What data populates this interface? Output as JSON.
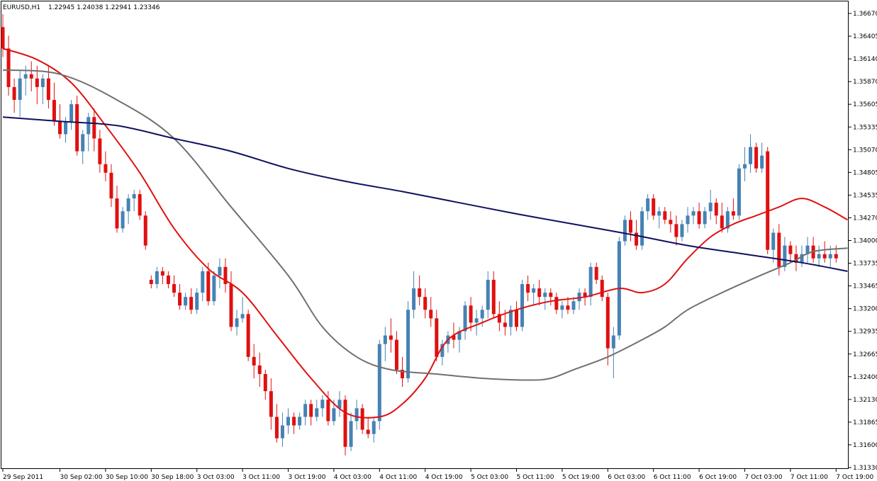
{
  "header": {
    "symbol": "EURUSD,H1",
    "quote": "1.22945 1.24038 1.22941 1.23346"
  },
  "colors": {
    "bull": "#4682b4",
    "bear": "#e01010",
    "ma_fast": "#e01010",
    "ma_mid": "#707070",
    "ma_slow": "#101060",
    "frame": "#000000"
  },
  "chart_data": {
    "type": "candlestick",
    "ylim": [
      1.3135,
      1.368
    ],
    "y_ticks": [
      "1.36670",
      "1.36405",
      "1.36140",
      "1.35870",
      "1.35605",
      "1.35335",
      "1.35070",
      "1.34805",
      "1.34535",
      "1.34270",
      "1.34000",
      "1.33735",
      "1.33465",
      "1.33200",
      "1.32935",
      "1.32665",
      "1.32400",
      "1.32130",
      "1.31865",
      "1.31600",
      "1.31330"
    ],
    "x_ticks": [
      {
        "label": "29 Sep 2011",
        "index": 0
      },
      {
        "label": "30 Sep 02:00",
        "index": 10
      },
      {
        "label": "30 Sep 10:00",
        "index": 18
      },
      {
        "label": "30 Sep 18:00",
        "index": 26
      },
      {
        "label": "3 Oct 03:00",
        "index": 34
      },
      {
        "label": "3 Oct 11:00",
        "index": 42
      },
      {
        "label": "3 Oct 19:00",
        "index": 50
      },
      {
        "label": "4 Oct 03:00",
        "index": 58
      },
      {
        "label": "4 Oct 11:00",
        "index": 66
      },
      {
        "label": "4 Oct 19:00",
        "index": 74
      },
      {
        "label": "5 Oct 03:00",
        "index": 82
      },
      {
        "label": "5 Oct 11:00",
        "index": 90
      },
      {
        "label": "5 Oct 19:00",
        "index": 98
      },
      {
        "label": "6 Oct 03:00",
        "index": 106
      },
      {
        "label": "6 Oct 11:00",
        "index": 114
      },
      {
        "label": "6 Oct 19:00",
        "index": 122
      },
      {
        "label": "7 Oct 03:00",
        "index": 130
      },
      {
        "label": "7 Oct 11:00",
        "index": 138
      },
      {
        "label": "7 Oct 19:00",
        "index": 146
      }
    ],
    "candles": [
      [
        1.365,
        1.3665,
        1.3615,
        1.3625
      ],
      [
        1.3625,
        1.364,
        1.357,
        1.358
      ],
      [
        1.358,
        1.359,
        1.355,
        1.3565
      ],
      [
        1.3565,
        1.36,
        1.3545,
        1.359
      ],
      [
        1.359,
        1.3605,
        1.357,
        1.3595
      ],
      [
        1.3595,
        1.361,
        1.3575,
        1.359
      ],
      [
        1.359,
        1.3605,
        1.356,
        1.358
      ],
      [
        1.358,
        1.3595,
        1.356,
        1.359
      ],
      [
        1.359,
        1.3605,
        1.3555,
        1.3565
      ],
      [
        1.3565,
        1.3585,
        1.3535,
        1.354
      ],
      [
        1.354,
        1.356,
        1.352,
        1.3525
      ],
      [
        1.3525,
        1.3545,
        1.3515,
        1.354
      ],
      [
        1.354,
        1.3565,
        1.353,
        1.356
      ],
      [
        1.356,
        1.357,
        1.35,
        1.3505
      ],
      [
        1.3505,
        1.353,
        1.349,
        1.3525
      ],
      [
        1.3525,
        1.355,
        1.3505,
        1.3545
      ],
      [
        1.3545,
        1.3555,
        1.3505,
        1.352
      ],
      [
        1.352,
        1.353,
        1.348,
        1.349
      ],
      [
        1.349,
        1.3505,
        1.347,
        1.348
      ],
      [
        1.348,
        1.349,
        1.344,
        1.345
      ],
      [
        1.345,
        1.3465,
        1.341,
        1.3415
      ],
      [
        1.3415,
        1.344,
        1.341,
        1.3435
      ],
      [
        1.3435,
        1.3455,
        1.342,
        1.345
      ],
      [
        1.345,
        1.346,
        1.3435,
        1.3455
      ],
      [
        1.3455,
        1.346,
        1.3425,
        1.343
      ],
      [
        1.343,
        1.3435,
        1.339,
        1.3395
      ],
      [
        1.3355,
        1.336,
        1.3345,
        1.335
      ],
      [
        1.335,
        1.337,
        1.3345,
        1.3365
      ],
      [
        1.3365,
        1.337,
        1.335,
        1.336
      ],
      [
        1.336,
        1.3365,
        1.3345,
        1.335
      ],
      [
        1.335,
        1.336,
        1.3335,
        1.334
      ],
      [
        1.334,
        1.335,
        1.332,
        1.3325
      ],
      [
        1.3325,
        1.334,
        1.332,
        1.3335
      ],
      [
        1.3335,
        1.3345,
        1.3315,
        1.332
      ],
      [
        1.332,
        1.3345,
        1.3315,
        1.334
      ],
      [
        1.334,
        1.337,
        1.333,
        1.3365
      ],
      [
        1.3365,
        1.3375,
        1.3325,
        1.333
      ],
      [
        1.333,
        1.3365,
        1.3325,
        1.336
      ],
      [
        1.336,
        1.338,
        1.3345,
        1.337
      ],
      [
        1.337,
        1.338,
        1.334,
        1.335
      ],
      [
        1.335,
        1.3365,
        1.3295,
        1.33
      ],
      [
        1.33,
        1.332,
        1.329,
        1.331
      ],
      [
        1.331,
        1.3335,
        1.3305,
        1.3315
      ],
      [
        1.3315,
        1.332,
        1.326,
        1.3265
      ],
      [
        1.3265,
        1.328,
        1.324,
        1.3255
      ],
      [
        1.3255,
        1.327,
        1.323,
        1.3245
      ],
      [
        1.3245,
        1.325,
        1.3215,
        1.3225
      ],
      [
        1.3225,
        1.324,
        1.318,
        1.3195
      ],
      [
        1.3195,
        1.321,
        1.3165,
        1.317
      ],
      [
        1.317,
        1.32,
        1.316,
        1.3185
      ],
      [
        1.3185,
        1.3205,
        1.3175,
        1.3195
      ],
      [
        1.3195,
        1.32,
        1.3175,
        1.3185
      ],
      [
        1.3185,
        1.32,
        1.318,
        1.3195
      ],
      [
        1.3195,
        1.3215,
        1.3185,
        1.321
      ],
      [
        1.321,
        1.3215,
        1.3185,
        1.3195
      ],
      [
        1.3195,
        1.3215,
        1.319,
        1.3205
      ],
      [
        1.3205,
        1.322,
        1.3195,
        1.3215
      ],
      [
        1.3215,
        1.3225,
        1.3185,
        1.319
      ],
      [
        1.319,
        1.3215,
        1.3185,
        1.3205
      ],
      [
        1.3205,
        1.3225,
        1.3195,
        1.3215
      ],
      [
        1.3215,
        1.322,
        1.315,
        1.316
      ],
      [
        1.316,
        1.32,
        1.3155,
        1.319
      ],
      [
        1.319,
        1.3215,
        1.318,
        1.3205
      ],
      [
        1.3205,
        1.321,
        1.3175,
        1.318
      ],
      [
        1.318,
        1.3195,
        1.317,
        1.3175
      ],
      [
        1.3175,
        1.3195,
        1.3165,
        1.319
      ],
      [
        1.319,
        1.3285,
        1.318,
        1.328
      ],
      [
        1.328,
        1.33,
        1.326,
        1.329
      ],
      [
        1.329,
        1.331,
        1.327,
        1.3285
      ],
      [
        1.3285,
        1.3295,
        1.3245,
        1.325
      ],
      [
        1.325,
        1.3265,
        1.323,
        1.324
      ],
      [
        1.324,
        1.333,
        1.3235,
        1.332
      ],
      [
        1.332,
        1.3365,
        1.331,
        1.3345
      ],
      [
        1.3345,
        1.336,
        1.3325,
        1.3335
      ],
      [
        1.3335,
        1.3345,
        1.331,
        1.332
      ],
      [
        1.332,
        1.3335,
        1.33,
        1.331
      ],
      [
        1.331,
        1.332,
        1.326,
        1.3265
      ],
      [
        1.3265,
        1.3285,
        1.3255,
        1.328
      ],
      [
        1.328,
        1.3295,
        1.327,
        1.329
      ],
      [
        1.329,
        1.3305,
        1.3275,
        1.3285
      ],
      [
        1.3285,
        1.33,
        1.327,
        1.3295
      ],
      [
        1.3295,
        1.333,
        1.3285,
        1.3325
      ],
      [
        1.3325,
        1.3335,
        1.3295,
        1.3305
      ],
      [
        1.3305,
        1.332,
        1.329,
        1.331
      ],
      [
        1.331,
        1.3325,
        1.33,
        1.332
      ],
      [
        1.332,
        1.3365,
        1.331,
        1.3355
      ],
      [
        1.3355,
        1.3365,
        1.331,
        1.3315
      ],
      [
        1.3315,
        1.333,
        1.3295,
        1.3305
      ],
      [
        1.3305,
        1.332,
        1.329,
        1.33
      ],
      [
        1.33,
        1.3325,
        1.329,
        1.332
      ],
      [
        1.332,
        1.333,
        1.3295,
        1.33
      ],
      [
        1.33,
        1.3355,
        1.3295,
        1.335
      ],
      [
        1.335,
        1.336,
        1.333,
        1.334
      ],
      [
        1.334,
        1.335,
        1.3325,
        1.3345
      ],
      [
        1.3345,
        1.3355,
        1.3325,
        1.3335
      ],
      [
        1.3335,
        1.3345,
        1.332,
        1.334
      ],
      [
        1.334,
        1.3345,
        1.3325,
        1.3335
      ],
      [
        1.3335,
        1.334,
        1.3315,
        1.332
      ],
      [
        1.332,
        1.333,
        1.331,
        1.3325
      ],
      [
        1.3325,
        1.3335,
        1.3315,
        1.332
      ],
      [
        1.332,
        1.3335,
        1.3315,
        1.333
      ],
      [
        1.333,
        1.3345,
        1.332,
        1.334
      ],
      [
        1.334,
        1.3345,
        1.3325,
        1.3335
      ],
      [
        1.3335,
        1.3375,
        1.3325,
        1.337
      ],
      [
        1.337,
        1.3375,
        1.335,
        1.3355
      ],
      [
        1.3355,
        1.336,
        1.333,
        1.3335
      ],
      [
        1.3335,
        1.334,
        1.3255,
        1.3275
      ],
      [
        1.3275,
        1.33,
        1.324,
        1.329
      ],
      [
        1.329,
        1.3405,
        1.3285,
        1.34
      ],
      [
        1.34,
        1.343,
        1.3395,
        1.3425
      ],
      [
        1.3425,
        1.3435,
        1.34,
        1.341
      ],
      [
        1.341,
        1.3425,
        1.339,
        1.3395
      ],
      [
        1.3395,
        1.344,
        1.339,
        1.3435
      ],
      [
        1.3435,
        1.3455,
        1.3425,
        1.345
      ],
      [
        1.345,
        1.3455,
        1.3425,
        1.343
      ],
      [
        1.343,
        1.344,
        1.3415,
        1.3435
      ],
      [
        1.3435,
        1.344,
        1.342,
        1.3425
      ],
      [
        1.3425,
        1.3435,
        1.341,
        1.342
      ],
      [
        1.342,
        1.343,
        1.3395,
        1.3405
      ],
      [
        1.3405,
        1.3425,
        1.34,
        1.342
      ],
      [
        1.342,
        1.344,
        1.341,
        1.343
      ],
      [
        1.343,
        1.344,
        1.342,
        1.3435
      ],
      [
        1.3435,
        1.3445,
        1.3415,
        1.342
      ],
      [
        1.342,
        1.344,
        1.3415,
        1.3435
      ],
      [
        1.3435,
        1.346,
        1.3425,
        1.3445
      ],
      [
        1.3445,
        1.345,
        1.342,
        1.343
      ],
      [
        1.343,
        1.3445,
        1.341,
        1.3415
      ],
      [
        1.3415,
        1.344,
        1.341,
        1.3435
      ],
      [
        1.3435,
        1.345,
        1.3425,
        1.343
      ],
      [
        1.343,
        1.349,
        1.3425,
        1.3485
      ],
      [
        1.3485,
        1.351,
        1.347,
        1.349
      ],
      [
        1.349,
        1.3525,
        1.348,
        1.351
      ],
      [
        1.351,
        1.3515,
        1.348,
        1.3485
      ],
      [
        1.3485,
        1.3515,
        1.348,
        1.35
      ],
      [
        1.3505,
        1.351,
        1.3385,
        1.339
      ],
      [
        1.339,
        1.3415,
        1.3375,
        1.341
      ],
      [
        1.341,
        1.342,
        1.336,
        1.337
      ],
      [
        1.337,
        1.3405,
        1.3365,
        1.3395
      ],
      [
        1.3395,
        1.34,
        1.3375,
        1.3385
      ],
      [
        1.3385,
        1.3395,
        1.3365,
        1.3375
      ],
      [
        1.3375,
        1.3395,
        1.337,
        1.3385
      ],
      [
        1.3385,
        1.3405,
        1.3375,
        1.3395
      ],
      [
        1.3395,
        1.3405,
        1.3375,
        1.338
      ],
      [
        1.338,
        1.3395,
        1.337,
        1.3385
      ],
      [
        1.3385,
        1.34,
        1.3375,
        1.338
      ],
      [
        1.338,
        1.3395,
        1.337,
        1.3385
      ],
      [
        1.3385,
        1.3395,
        1.3375,
        1.338
      ]
    ],
    "moving_averages": [
      {
        "name": "",
        "color": "#e01010",
        "points": [
          [
            0,
            1.3625
          ],
          [
            6,
            1.3612
          ],
          [
            12,
            1.3585
          ],
          [
            18,
            1.3535
          ],
          [
            24,
            1.348
          ],
          [
            30,
            1.3415
          ],
          [
            36,
            1.3368
          ],
          [
            42,
            1.334
          ],
          [
            48,
            1.329
          ],
          [
            54,
            1.324
          ],
          [
            60,
            1.32
          ],
          [
            66,
            1.3195
          ],
          [
            70,
            1.321
          ],
          [
            74,
            1.324
          ],
          [
            78,
            1.3285
          ],
          [
            84,
            1.3305
          ],
          [
            90,
            1.332
          ],
          [
            96,
            1.333
          ],
          [
            102,
            1.3335
          ],
          [
            108,
            1.3345
          ],
          [
            112,
            1.334
          ],
          [
            116,
            1.335
          ],
          [
            120,
            1.338
          ],
          [
            124,
            1.3405
          ],
          [
            128,
            1.342
          ],
          [
            132,
            1.343
          ],
          [
            136,
            1.344
          ],
          [
            140,
            1.345
          ],
          [
            144,
            1.344
          ],
          [
            148,
            1.3425
          ]
        ]
      },
      {
        "name": "",
        "color": "#707070",
        "points": [
          [
            0,
            1.36
          ],
          [
            10,
            1.3595
          ],
          [
            20,
            1.3565
          ],
          [
            30,
            1.352
          ],
          [
            40,
            1.344
          ],
          [
            50,
            1.336
          ],
          [
            56,
            1.33
          ],
          [
            62,
            1.3265
          ],
          [
            68,
            1.325
          ],
          [
            76,
            1.3245
          ],
          [
            84,
            1.324
          ],
          [
            92,
            1.3238
          ],
          [
            96,
            1.324
          ],
          [
            100,
            1.325
          ],
          [
            106,
            1.3265
          ],
          [
            112,
            1.3285
          ],
          [
            116,
            1.33
          ],
          [
            120,
            1.332
          ],
          [
            126,
            1.334
          ],
          [
            132,
            1.3358
          ],
          [
            138,
            1.3375
          ],
          [
            142,
            1.3388
          ],
          [
            148,
            1.3392
          ]
        ]
      },
      {
        "name": "",
        "color": "#101060",
        "points": [
          [
            0,
            1.3545
          ],
          [
            10,
            1.354
          ],
          [
            20,
            1.3535
          ],
          [
            30,
            1.352
          ],
          [
            40,
            1.3505
          ],
          [
            50,
            1.3485
          ],
          [
            60,
            1.347
          ],
          [
            70,
            1.3458
          ],
          [
            80,
            1.3445
          ],
          [
            90,
            1.3432
          ],
          [
            100,
            1.342
          ],
          [
            110,
            1.3408
          ],
          [
            120,
            1.3395
          ],
          [
            130,
            1.3385
          ],
          [
            140,
            1.3375
          ],
          [
            148,
            1.3365
          ]
        ]
      }
    ]
  }
}
